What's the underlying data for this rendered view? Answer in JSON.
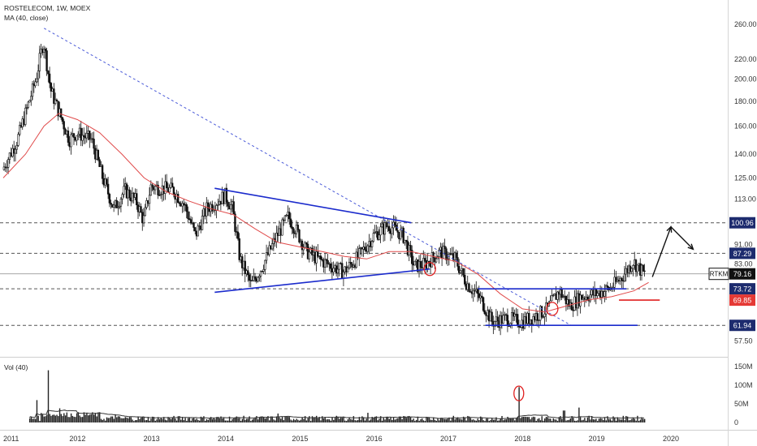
{
  "header": {
    "symbol_line": "ROSTELECOM, 1W, MOEX",
    "indicator_line": "MA (40, close)"
  },
  "volume_pane": {
    "label": "Vol (40)"
  },
  "chart_data": [
    {
      "type": "candlestick",
      "symbol": "ROSTELECOM",
      "interval": "1W",
      "exchange": "MOEX",
      "scale": "log",
      "ylim": [
        55,
        270
      ],
      "x_tick_labels": [
        "2011",
        "2012",
        "2013",
        "2014",
        "2015",
        "2016",
        "2017",
        "2018",
        "2019",
        "2020"
      ],
      "y_tick_labels": [
        "260.00",
        "220.00",
        "200.00",
        "180.00",
        "160.00",
        "140.00",
        "125.00",
        "113.00",
        "91.00",
        "83.00",
        "57.50"
      ],
      "y_tick_values": [
        260,
        220,
        200,
        180,
        160,
        140,
        125,
        113,
        91,
        83,
        57.5
      ],
      "price_path": [
        {
          "t": 2011.0,
          "p": 130
        },
        {
          "t": 2011.2,
          "p": 150
        },
        {
          "t": 2011.45,
          "p": 200
        },
        {
          "t": 2011.55,
          "p": 240
        },
        {
          "t": 2011.65,
          "p": 190
        },
        {
          "t": 2011.8,
          "p": 165
        },
        {
          "t": 2011.9,
          "p": 150
        },
        {
          "t": 2012.0,
          "p": 155
        },
        {
          "t": 2012.2,
          "p": 150
        },
        {
          "t": 2012.35,
          "p": 125
        },
        {
          "t": 2012.5,
          "p": 108
        },
        {
          "t": 2012.65,
          "p": 118
        },
        {
          "t": 2012.8,
          "p": 112
        },
        {
          "t": 2012.9,
          "p": 102
        },
        {
          "t": 2013.0,
          "p": 120
        },
        {
          "t": 2013.3,
          "p": 118
        },
        {
          "t": 2013.45,
          "p": 110
        },
        {
          "t": 2013.6,
          "p": 95
        },
        {
          "t": 2013.75,
          "p": 108
        },
        {
          "t": 2013.9,
          "p": 112
        },
        {
          "t": 2014.0,
          "p": 115
        },
        {
          "t": 2014.1,
          "p": 108
        },
        {
          "t": 2014.2,
          "p": 85
        },
        {
          "t": 2014.35,
          "p": 75
        },
        {
          "t": 2014.5,
          "p": 82
        },
        {
          "t": 2014.7,
          "p": 95
        },
        {
          "t": 2014.85,
          "p": 104
        },
        {
          "t": 2014.95,
          "p": 98
        },
        {
          "t": 2015.1,
          "p": 88
        },
        {
          "t": 2015.25,
          "p": 85
        },
        {
          "t": 2015.45,
          "p": 82
        },
        {
          "t": 2015.6,
          "p": 80
        },
        {
          "t": 2015.8,
          "p": 86
        },
        {
          "t": 2016.0,
          "p": 95
        },
        {
          "t": 2016.2,
          "p": 100
        },
        {
          "t": 2016.4,
          "p": 95
        },
        {
          "t": 2016.55,
          "p": 82
        },
        {
          "t": 2016.7,
          "p": 83
        },
        {
          "t": 2016.9,
          "p": 88
        },
        {
          "t": 2017.1,
          "p": 85
        },
        {
          "t": 2017.25,
          "p": 76
        },
        {
          "t": 2017.45,
          "p": 70
        },
        {
          "t": 2017.6,
          "p": 63
        },
        {
          "t": 2017.8,
          "p": 64
        },
        {
          "t": 2018.0,
          "p": 63
        },
        {
          "t": 2018.2,
          "p": 65
        },
        {
          "t": 2018.35,
          "p": 67
        },
        {
          "t": 2018.5,
          "p": 73
        },
        {
          "t": 2018.65,
          "p": 68
        },
        {
          "t": 2018.8,
          "p": 71
        },
        {
          "t": 2019.0,
          "p": 72
        },
        {
          "t": 2019.2,
          "p": 74
        },
        {
          "t": 2019.35,
          "p": 78
        },
        {
          "t": 2019.5,
          "p": 84
        },
        {
          "t": 2019.65,
          "p": 79
        }
      ],
      "moving_average": [
        {
          "t": 2011.0,
          "p": 125
        },
        {
          "t": 2011.3,
          "p": 140
        },
        {
          "t": 2011.55,
          "p": 160
        },
        {
          "t": 2011.75,
          "p": 170
        },
        {
          "t": 2012.0,
          "p": 165
        },
        {
          "t": 2012.3,
          "p": 155
        },
        {
          "t": 2012.6,
          "p": 140
        },
        {
          "t": 2012.9,
          "p": 125
        },
        {
          "t": 2013.2,
          "p": 117
        },
        {
          "t": 2013.5,
          "p": 112
        },
        {
          "t": 2013.8,
          "p": 108
        },
        {
          "t": 2014.1,
          "p": 105
        },
        {
          "t": 2014.4,
          "p": 98
        },
        {
          "t": 2014.7,
          "p": 92
        },
        {
          "t": 2015.0,
          "p": 90
        },
        {
          "t": 2015.3,
          "p": 88
        },
        {
          "t": 2015.6,
          "p": 86
        },
        {
          "t": 2015.9,
          "p": 85
        },
        {
          "t": 2016.2,
          "p": 88
        },
        {
          "t": 2016.5,
          "p": 88
        },
        {
          "t": 2016.8,
          "p": 86
        },
        {
          "t": 2017.1,
          "p": 84
        },
        {
          "t": 2017.4,
          "p": 79
        },
        {
          "t": 2017.7,
          "p": 72
        },
        {
          "t": 2018.0,
          "p": 67
        },
        {
          "t": 2018.3,
          "p": 66
        },
        {
          "t": 2018.6,
          "p": 68
        },
        {
          "t": 2018.9,
          "p": 70
        },
        {
          "t": 2019.2,
          "p": 71
        },
        {
          "t": 2019.5,
          "p": 73
        },
        {
          "t": 2019.7,
          "p": 76
        }
      ],
      "price_labels": [
        {
          "text": "100.96",
          "value": 100.96,
          "style": "dark",
          "dashed_line": true
        },
        {
          "text": "87.29",
          "value": 87.29,
          "style": "dark",
          "dashed_line": true
        },
        {
          "text": "79.16",
          "value": 79.16,
          "style": "black",
          "tag": "RTKM",
          "dashed_line": false
        },
        {
          "text": "73.72",
          "value": 73.72,
          "style": "dark",
          "dashed_line": true
        },
        {
          "text": "69.85",
          "value": 69.85,
          "style": "red",
          "dashed_line": false
        },
        {
          "text": "61.94",
          "value": 61.94,
          "style": "dark",
          "dashed_line": true
        }
      ],
      "trendlines": [
        {
          "kind": "dashed-downtrend",
          "from": {
            "t": 2011.55,
            "p": 255
          },
          "to": {
            "t": 2018.65,
            "p": 62
          }
        },
        {
          "kind": "triangle-upper",
          "from": {
            "t": 2013.85,
            "p": 119
          },
          "to": {
            "t": 2016.5,
            "p": 100.96
          }
        },
        {
          "kind": "triangle-lower",
          "from": {
            "t": 2013.85,
            "p": 72.5
          },
          "to": {
            "t": 2016.75,
            "p": 81
          }
        },
        {
          "kind": "resistance",
          "from": {
            "t": 2017.4,
            "p": 73.72
          },
          "to": {
            "t": 2019.4,
            "p": 73.72
          }
        },
        {
          "kind": "support",
          "from": {
            "t": 2017.5,
            "p": 61.94
          },
          "to": {
            "t": 2019.55,
            "p": 61.94
          }
        },
        {
          "kind": "red-level",
          "from": {
            "t": 2019.3,
            "p": 69.85
          },
          "to": {
            "t": 2019.85,
            "p": 69.85
          }
        }
      ],
      "projection_arrow": [
        {
          "t": 2019.75,
          "p": 78
        },
        {
          "t": 2020.0,
          "p": 99
        },
        {
          "t": 2020.3,
          "p": 89
        }
      ],
      "marker_circles": [
        {
          "t": 2016.75,
          "p": 81
        },
        {
          "t": 2018.4,
          "p": 67
        }
      ]
    },
    {
      "type": "bar",
      "name": "Vol (40)",
      "ylim": [
        0,
        150
      ],
      "y_tick_labels": [
        "150M",
        "100M",
        "50M",
        "0"
      ],
      "y_tick_values": [
        150,
        100,
        50,
        0
      ],
      "moving_average": true,
      "spikes": [
        {
          "t": 2011.6,
          "v": 140
        },
        {
          "t": 2011.45,
          "v": 60
        },
        {
          "t": 2011.75,
          "v": 38
        },
        {
          "t": 2012.5,
          "v": 22
        },
        {
          "t": 2014.7,
          "v": 24
        },
        {
          "t": 2015.9,
          "v": 26
        },
        {
          "t": 2017.95,
          "v": 95
        },
        {
          "t": 2018.55,
          "v": 32
        },
        {
          "t": 2018.75,
          "v": 40
        }
      ],
      "marker_circles": [
        {
          "t": 2017.95,
          "v": 78
        }
      ]
    }
  ]
}
